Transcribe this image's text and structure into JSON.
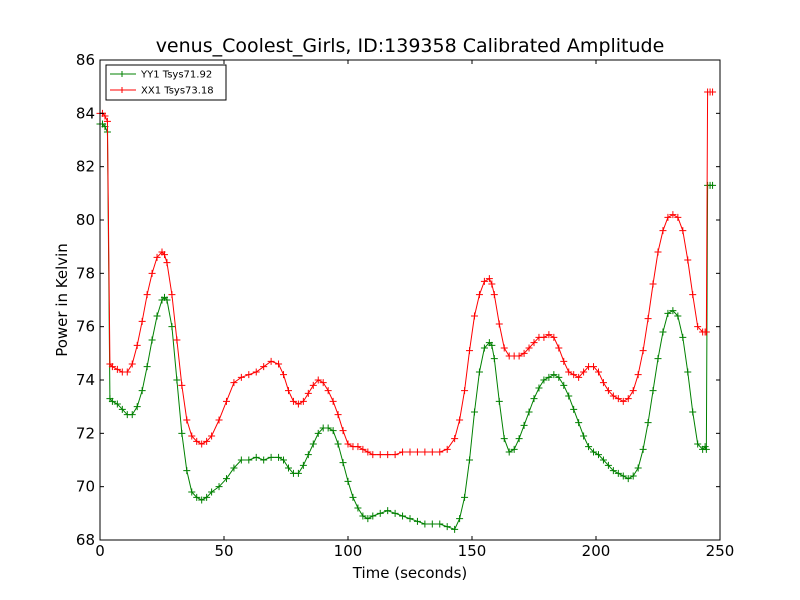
{
  "chart_data": {
    "type": "line",
    "title": "venus_Coolest_Girls, ID:139358 Calibrated Amplitude",
    "xlabel": "Time (seconds)",
    "ylabel": "Power in Kelvin",
    "xlim": [
      0,
      250
    ],
    "ylim": [
      68,
      86
    ],
    "xticks": [
      0,
      50,
      100,
      150,
      200,
      250
    ],
    "yticks": [
      68,
      70,
      72,
      74,
      76,
      78,
      80,
      82,
      84,
      86
    ],
    "grid": false,
    "legend_position": "top-left",
    "marker": "+",
    "series": [
      {
        "name": "YY1 Tsys71.92",
        "color": "#008000",
        "x": [
          0,
          1,
          2,
          3,
          4,
          5,
          7,
          9,
          11,
          13,
          15,
          17,
          19,
          21,
          23,
          25,
          26,
          27,
          29,
          31,
          33,
          35,
          37,
          39,
          41,
          43,
          45,
          48,
          51,
          54,
          57,
          60,
          63,
          66,
          69,
          72,
          74,
          76,
          78,
          80,
          82,
          84,
          86,
          88,
          90,
          92,
          94,
          96,
          98,
          100,
          102,
          104,
          106,
          108,
          110,
          113,
          116,
          119,
          122,
          125,
          128,
          131,
          134,
          137,
          140,
          143,
          145,
          147,
          149,
          151,
          153,
          155,
          157,
          158,
          159,
          161,
          163,
          165,
          167,
          169,
          171,
          173,
          175,
          177,
          179,
          181,
          183,
          185,
          187,
          189,
          191,
          193,
          195,
          197,
          199,
          201,
          203,
          205,
          207,
          209,
          211,
          213,
          215,
          217,
          219,
          221,
          223,
          225,
          227,
          229,
          231,
          233,
          235,
          237,
          239,
          241,
          243,
          244,
          244.5,
          245,
          246,
          247
        ],
        "values": [
          83.6,
          83.6,
          83.5,
          83.3,
          73.3,
          73.2,
          73.1,
          72.9,
          72.7,
          72.7,
          73.0,
          73.6,
          74.5,
          75.5,
          76.4,
          77.0,
          77.1,
          77.0,
          76.0,
          74.0,
          72.0,
          70.6,
          69.8,
          69.6,
          69.5,
          69.6,
          69.8,
          70.0,
          70.3,
          70.7,
          71.0,
          71.0,
          71.1,
          71.0,
          71.1,
          71.1,
          71.0,
          70.7,
          70.5,
          70.5,
          70.8,
          71.2,
          71.6,
          72.0,
          72.2,
          72.2,
          72.1,
          71.6,
          70.9,
          70.2,
          69.6,
          69.2,
          68.9,
          68.8,
          68.9,
          69.0,
          69.1,
          69.0,
          68.9,
          68.8,
          68.7,
          68.6,
          68.6,
          68.6,
          68.5,
          68.4,
          68.8,
          69.6,
          71.0,
          72.8,
          74.3,
          75.2,
          75.4,
          75.3,
          74.8,
          73.2,
          71.8,
          71.3,
          71.4,
          71.8,
          72.3,
          72.8,
          73.3,
          73.7,
          74.0,
          74.1,
          74.2,
          74.1,
          73.8,
          73.4,
          72.9,
          72.4,
          71.9,
          71.5,
          71.3,
          71.2,
          71.0,
          70.8,
          70.6,
          70.5,
          70.4,
          70.3,
          70.4,
          70.7,
          71.4,
          72.4,
          73.6,
          74.8,
          75.8,
          76.5,
          76.6,
          76.4,
          75.6,
          74.3,
          72.8,
          71.6,
          71.4,
          71.5,
          71.4,
          81.3,
          81.3,
          81.3
        ]
      },
      {
        "name": "XX1 Tsys73.18",
        "color": "#ff0000",
        "x": [
          0,
          1,
          2,
          3,
          4,
          5,
          7,
          9,
          11,
          13,
          15,
          17,
          19,
          21,
          23,
          25,
          26,
          27,
          29,
          31,
          33,
          35,
          37,
          39,
          41,
          43,
          45,
          48,
          51,
          54,
          57,
          60,
          63,
          66,
          69,
          72,
          74,
          76,
          78,
          80,
          82,
          84,
          86,
          88,
          90,
          92,
          94,
          96,
          98,
          100,
          102,
          104,
          106,
          108,
          110,
          113,
          116,
          119,
          122,
          125,
          128,
          131,
          134,
          137,
          140,
          143,
          145,
          147,
          149,
          151,
          153,
          155,
          157,
          158,
          159,
          161,
          163,
          165,
          167,
          169,
          171,
          173,
          175,
          177,
          179,
          181,
          183,
          185,
          187,
          189,
          191,
          193,
          195,
          197,
          199,
          201,
          203,
          205,
          207,
          209,
          211,
          213,
          215,
          217,
          219,
          221,
          223,
          225,
          227,
          229,
          231,
          233,
          235,
          237,
          239,
          241,
          243,
          244,
          244.5,
          245,
          246,
          247
        ],
        "values": [
          84.0,
          84.0,
          83.9,
          83.7,
          74.6,
          74.5,
          74.4,
          74.3,
          74.3,
          74.6,
          75.3,
          76.2,
          77.2,
          78.0,
          78.6,
          78.8,
          78.7,
          78.4,
          77.2,
          75.5,
          73.8,
          72.5,
          71.9,
          71.7,
          71.6,
          71.7,
          71.9,
          72.5,
          73.2,
          73.9,
          74.1,
          74.2,
          74.3,
          74.5,
          74.7,
          74.6,
          74.2,
          73.6,
          73.2,
          73.1,
          73.2,
          73.5,
          73.8,
          74.0,
          73.9,
          73.6,
          73.2,
          72.7,
          72.1,
          71.6,
          71.5,
          71.5,
          71.4,
          71.3,
          71.2,
          71.2,
          71.2,
          71.2,
          71.3,
          71.3,
          71.3,
          71.3,
          71.3,
          71.3,
          71.4,
          71.8,
          72.5,
          73.6,
          75.1,
          76.4,
          77.2,
          77.7,
          77.8,
          77.6,
          77.2,
          76.1,
          75.2,
          74.9,
          74.9,
          74.9,
          75.0,
          75.2,
          75.4,
          75.6,
          75.6,
          75.7,
          75.6,
          75.2,
          74.7,
          74.3,
          74.2,
          74.1,
          74.3,
          74.5,
          74.5,
          74.3,
          73.9,
          73.6,
          73.4,
          73.3,
          73.2,
          73.3,
          73.6,
          74.2,
          75.1,
          76.3,
          77.6,
          78.8,
          79.6,
          80.1,
          80.2,
          80.1,
          79.6,
          78.5,
          77.2,
          76.0,
          75.8,
          75.8,
          75.8,
          84.8,
          84.8,
          84.8
        ]
      }
    ]
  }
}
